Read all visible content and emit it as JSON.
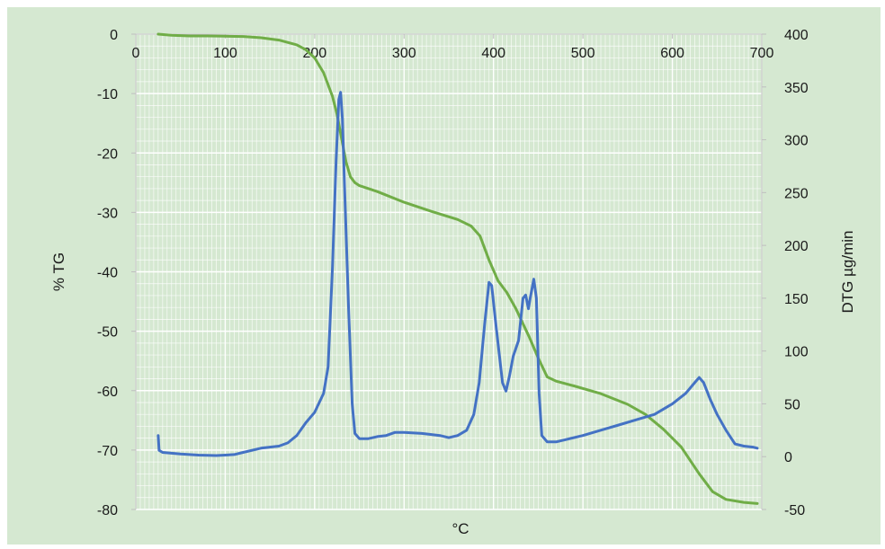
{
  "chart_data": {
    "type": "line",
    "title": "",
    "xlabel": "°C",
    "ylabel_left": "% TG",
    "ylabel_right": "DTG µg/min",
    "xlim": [
      0,
      700
    ],
    "ylim_left": [
      -80,
      0
    ],
    "ylim_right": [
      -50,
      400
    ],
    "x_ticks": [
      0,
      100,
      200,
      300,
      400,
      500,
      600,
      700
    ],
    "y_left_ticks": [
      0,
      -10,
      -20,
      -30,
      -40,
      -50,
      -60,
      -70,
      -80
    ],
    "y_right_ticks": [
      400,
      350,
      300,
      250,
      200,
      150,
      100,
      50,
      0,
      -50
    ],
    "grid": true,
    "colors": {
      "background": "#d5e8d1",
      "tg": "#70ad47",
      "dtg": "#4472c4",
      "grid": "#ffffff"
    },
    "series": [
      {
        "axis": "left",
        "points": [
          [
            25,
            0
          ],
          [
            40,
            -0.2
          ],
          [
            60,
            -0.3
          ],
          [
            80,
            -0.3
          ],
          [
            100,
            -0.35
          ],
          [
            120,
            -0.4
          ],
          [
            140,
            -0.6
          ],
          [
            160,
            -1.0
          ],
          [
            180,
            -1.8
          ],
          [
            190,
            -2.6
          ],
          [
            200,
            -4
          ],
          [
            210,
            -6.5
          ],
          [
            220,
            -10.5
          ],
          [
            225,
            -13.5
          ],
          [
            230,
            -17.5
          ],
          [
            235,
            -21.5
          ],
          [
            240,
            -24
          ],
          [
            245,
            -25
          ],
          [
            250,
            -25.5
          ],
          [
            270,
            -26.5
          ],
          [
            300,
            -28.3
          ],
          [
            330,
            -29.8
          ],
          [
            360,
            -31.2
          ],
          [
            375,
            -32.3
          ],
          [
            385,
            -34
          ],
          [
            395,
            -38
          ],
          [
            405,
            -41.5
          ],
          [
            415,
            -43.5
          ],
          [
            425,
            -46.2
          ],
          [
            440,
            -51
          ],
          [
            450,
            -54.5
          ],
          [
            460,
            -57.7
          ],
          [
            470,
            -58.4
          ],
          [
            490,
            -59.2
          ],
          [
            520,
            -60.5
          ],
          [
            550,
            -62.3
          ],
          [
            570,
            -64
          ],
          [
            590,
            -66.5
          ],
          [
            610,
            -69.5
          ],
          [
            630,
            -74
          ],
          [
            645,
            -77
          ],
          [
            660,
            -78.3
          ],
          [
            680,
            -78.8
          ],
          [
            695,
            -79
          ]
        ]
      },
      {
        "axis": "right",
        "points": [
          [
            25,
            20
          ],
          [
            26,
            6
          ],
          [
            30,
            4
          ],
          [
            50,
            2.5
          ],
          [
            70,
            1.5
          ],
          [
            90,
            1
          ],
          [
            110,
            2
          ],
          [
            120,
            4
          ],
          [
            140,
            8
          ],
          [
            160,
            10
          ],
          [
            170,
            13
          ],
          [
            180,
            20
          ],
          [
            190,
            32
          ],
          [
            200,
            42
          ],
          [
            210,
            60
          ],
          [
            215,
            85
          ],
          [
            220,
            180
          ],
          [
            224,
            280
          ],
          [
            227,
            338
          ],
          [
            229,
            345
          ],
          [
            231,
            320
          ],
          [
            234,
            240
          ],
          [
            238,
            140
          ],
          [
            242,
            50
          ],
          [
            245,
            22
          ],
          [
            250,
            17
          ],
          [
            260,
            17
          ],
          [
            270,
            19
          ],
          [
            280,
            20
          ],
          [
            290,
            23
          ],
          [
            300,
            23
          ],
          [
            320,
            22
          ],
          [
            340,
            20
          ],
          [
            350,
            18
          ],
          [
            360,
            20
          ],
          [
            370,
            25
          ],
          [
            378,
            40
          ],
          [
            384,
            70
          ],
          [
            390,
            125
          ],
          [
            395,
            165
          ],
          [
            398,
            162
          ],
          [
            402,
            130
          ],
          [
            406,
            100
          ],
          [
            410,
            70
          ],
          [
            414,
            62
          ],
          [
            418,
            77
          ],
          [
            422,
            95
          ],
          [
            428,
            110
          ],
          [
            433,
            150
          ],
          [
            436,
            153
          ],
          [
            439,
            140
          ],
          [
            441,
            150
          ],
          [
            445,
            168
          ],
          [
            448,
            150
          ],
          [
            451,
            60
          ],
          [
            454,
            20
          ],
          [
            460,
            14
          ],
          [
            470,
            14
          ],
          [
            480,
            16
          ],
          [
            500,
            20
          ],
          [
            520,
            25
          ],
          [
            540,
            30
          ],
          [
            560,
            35
          ],
          [
            580,
            40
          ],
          [
            600,
            50
          ],
          [
            615,
            60
          ],
          [
            625,
            70
          ],
          [
            630,
            75
          ],
          [
            635,
            70
          ],
          [
            642,
            55
          ],
          [
            650,
            40
          ],
          [
            660,
            25
          ],
          [
            670,
            12
          ],
          [
            680,
            10
          ],
          [
            690,
            9
          ],
          [
            695,
            8
          ]
        ]
      }
    ]
  }
}
